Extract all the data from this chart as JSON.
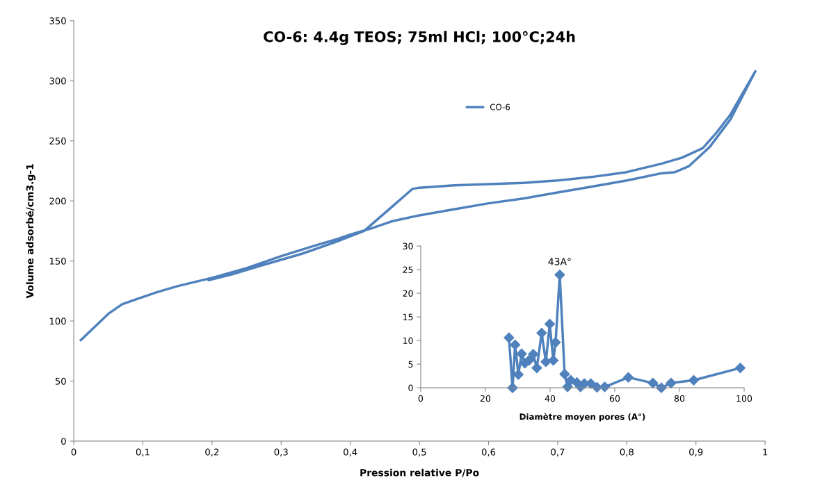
{
  "chart_data": [
    {
      "type": "line",
      "title": "CO-6: 4.4g TEOS; 75ml HCl; 100°C;24h",
      "xlabel": "Pression relative P/Po",
      "ylabel": "Volume adsorbé/cm3.g-1",
      "xlim": [
        0,
        1
      ],
      "ylim": [
        0,
        350
      ],
      "xticks": [
        0,
        {
          "value": 0.1,
          "label": "0,1"
        },
        {
          "value": 0.2,
          "label": "0,2"
        },
        {
          "value": 0.3,
          "label": "0,3"
        },
        {
          "value": 0.4,
          "label": "0,4"
        },
        {
          "value": 0.5,
          "label": "0,5"
        },
        {
          "value": 0.6,
          "label": "0,6"
        },
        {
          "value": 0.7,
          "label": "0,7"
        },
        {
          "value": 0.8,
          "label": "0,8"
        },
        {
          "value": 0.9,
          "label": "0,9"
        },
        1
      ],
      "yticks": [
        0,
        50,
        100,
        150,
        200,
        250,
        300,
        350
      ],
      "grid": false,
      "legend": "top",
      "marker": "none",
      "line_style": "solid",
      "series": [
        {
          "name": "CO-6",
          "color": "#4f81bd",
          "x": [
            0.01,
            0.03,
            0.05,
            0.07,
            0.09,
            0.12,
            0.15,
            0.2,
            0.25,
            0.3,
            0.35,
            0.38,
            0.4,
            0.43,
            0.46,
            0.5,
            0.55,
            0.6,
            0.65,
            0.7,
            0.75,
            0.8,
            0.85,
            0.87,
            0.89,
            0.92,
            0.95,
            0.986,
            0.95,
            0.93,
            0.91,
            0.88,
            0.85,
            0.8,
            0.75,
            0.7,
            0.65,
            0.6,
            0.55,
            0.5,
            0.49,
            0.48,
            0.46,
            0.44,
            0.42,
            0.38,
            0.33,
            0.27,
            0.23,
            0.195
          ],
          "values": [
            84,
            95,
            106,
            114,
            118,
            124,
            129,
            136,
            144,
            154,
            163,
            168,
            172,
            177,
            183,
            188,
            193,
            198,
            202,
            207,
            212,
            217,
            223,
            224,
            229,
            245,
            268,
            308,
            272,
            257,
            244,
            236,
            231,
            224,
            220,
            217,
            215,
            214,
            213,
            211,
            210,
            205,
            195,
            185,
            175,
            166,
            156,
            146,
            139,
            134
          ]
        }
      ]
    },
    {
      "type": "line",
      "xlabel": "Diamètre moyen pores (A°)",
      "xlim": [
        0,
        100
      ],
      "ylim": [
        0,
        30
      ],
      "xticks": [
        0,
        20,
        40,
        60,
        80,
        100
      ],
      "yticks": [
        0,
        5,
        10,
        15,
        20,
        25,
        30
      ],
      "grid": false,
      "legend": false,
      "marker": "diamond",
      "line_style": "solid",
      "annotations": [
        {
          "text": "43A°",
          "x": 43.0,
          "y": 23.9
        }
      ],
      "series": [
        {
          "color": "#4f81bd",
          "x": [
            27.3,
            28.4,
            29.2,
            30.2,
            31.2,
            32.2,
            33.5,
            34.8,
            35.9,
            37.4,
            38.7,
            39.9,
            41.0,
            41.7,
            43.0,
            44.5,
            45.4,
            46.4,
            48.3,
            49.4,
            50.6,
            52.6,
            54.5,
            56.9,
            64.2,
            71.8,
            74.4,
            77.4,
            84.4,
            98.8
          ],
          "values": [
            10.6,
            0,
            9.1,
            2.8,
            7.2,
            5.2,
            5.8,
            7.1,
            4.2,
            11.6,
            5.5,
            13.5,
            5.8,
            9.6,
            23.9,
            2.9,
            0.2,
            1.6,
            1.1,
            0.2,
            0.9,
            0.9,
            0.1,
            0.2,
            2.2,
            1.0,
            0,
            1.0,
            1.6,
            4.2
          ]
        }
      ]
    }
  ]
}
